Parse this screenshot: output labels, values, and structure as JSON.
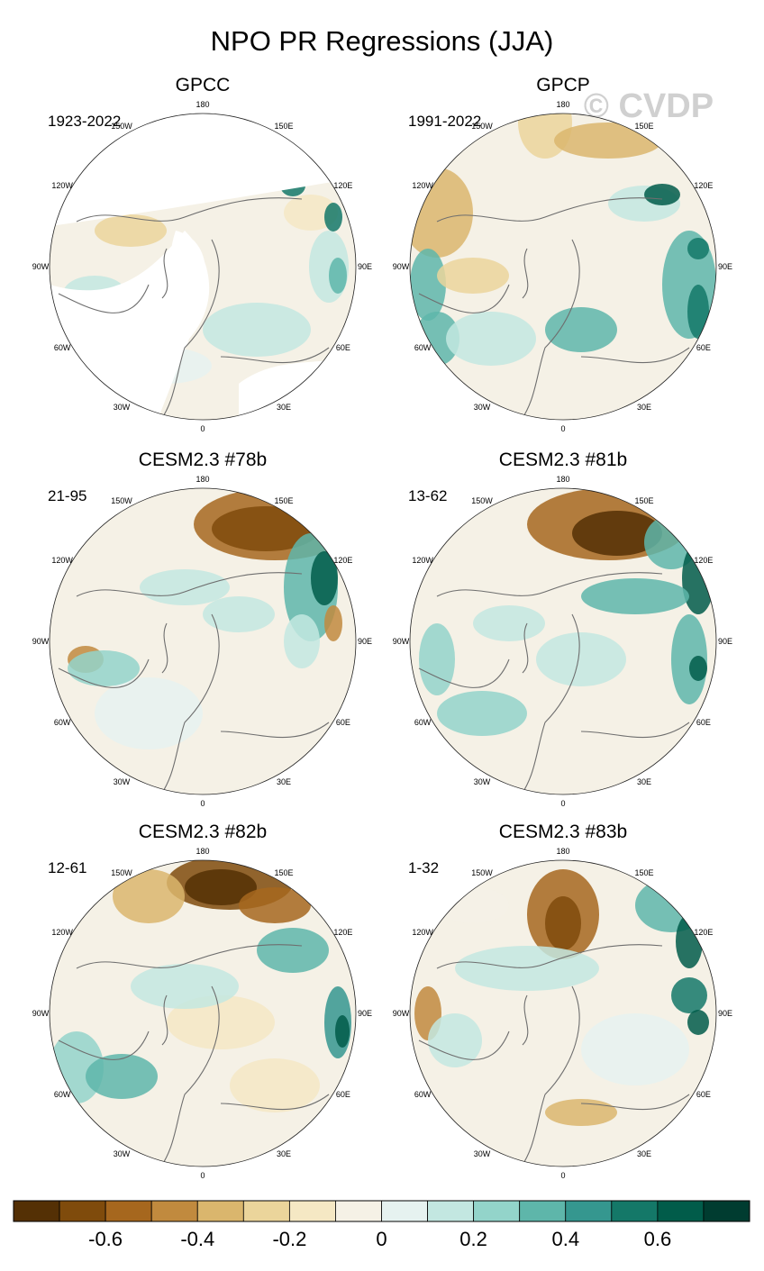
{
  "title": "NPO PR Regressions (JJA)",
  "watermark": "© CVDP",
  "lon_labels": [
    "180",
    "150E",
    "120E",
    "90E",
    "60E",
    "30E",
    "0",
    "30W",
    "60W",
    "90W",
    "120W",
    "150W"
  ],
  "colorbar": {
    "colors": [
      "#543005",
      "#7f4b0c",
      "#a6671e",
      "#c18a3e",
      "#dab66d",
      "#ebd59b",
      "#f5e8c4",
      "#f5f1e6",
      "#e6f2f0",
      "#c3e7e1",
      "#93d4ca",
      "#5eb6aa",
      "#35978f",
      "#147868",
      "#015c4a",
      "#003c30"
    ],
    "tick_values": [
      "-0.6",
      "-0.4",
      "-0.2",
      "0",
      "0.2",
      "0.4",
      "0.6"
    ]
  },
  "chart_data": [
    {
      "type": "heatmap",
      "projection": "polar-stereographic",
      "title": "GPCC",
      "period": "1923-2022"
    },
    {
      "type": "heatmap",
      "projection": "polar-stereographic",
      "title": "GPCP",
      "period": "1991-2022"
    },
    {
      "type": "heatmap",
      "projection": "polar-stereographic",
      "title": "CESM2.3 #78b",
      "period": "21-95"
    },
    {
      "type": "heatmap",
      "projection": "polar-stereographic",
      "title": "CESM2.3 #81b",
      "period": "13-62"
    },
    {
      "type": "heatmap",
      "projection": "polar-stereographic",
      "title": "CESM2.3 #82b",
      "period": "12-61"
    },
    {
      "type": "heatmap",
      "projection": "polar-stereographic",
      "title": "CESM2.3 #83b",
      "period": "1-32"
    }
  ]
}
